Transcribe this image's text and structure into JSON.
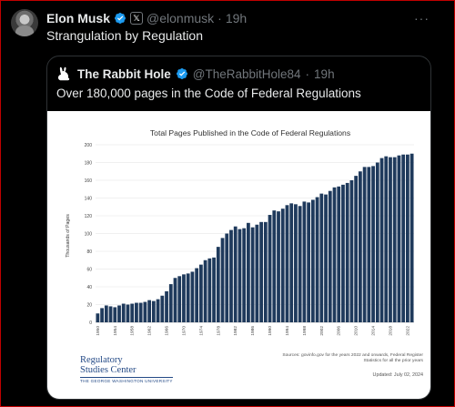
{
  "post": {
    "author_name": "Elon Musk",
    "author_handle": "@elonmusk",
    "time": "19h",
    "separator": "·",
    "text": "Strangulation by Regulation",
    "more_glyph": "···"
  },
  "quote": {
    "author_name": "The Rabbit Hole",
    "author_handle": "@TheRabbitHole84",
    "time": "19h",
    "separator": "·",
    "text": "Over 180,000 pages in the Code of Federal Regulations"
  },
  "card": {
    "logo_line1": "Regulatory",
    "logo_line2": "Studies Center",
    "logo_line3": "THE GEORGE WASHINGTON UNIVERSITY",
    "sources_line1": "Sources: govinfo.gov for the years 2022 and onwards, Federal Register",
    "sources_line2": "Statistics for all the prior years",
    "updated": "Updated: July 02, 2024"
  },
  "colors": {
    "bar": "#1f3a5c",
    "verified": "#1d9bf0",
    "background": "#000000",
    "card": "#ffffff"
  },
  "chart_data": {
    "type": "bar",
    "title": "Total Pages Published in the Code of Federal Regulations",
    "xlabel": "",
    "ylabel": "Thousands of Pages",
    "ylim": [
      0,
      200
    ],
    "yticks": [
      0,
      20,
      40,
      60,
      80,
      100,
      120,
      140,
      160,
      180,
      200
    ],
    "xtick_labels": [
      "1950",
      "1954",
      "1958",
      "1962",
      "1966",
      "1970",
      "1974",
      "1978",
      "1982",
      "1986",
      "1990",
      "1994",
      "1998",
      "2002",
      "2006",
      "2010",
      "2014",
      "2018",
      "2022"
    ],
    "grid": true,
    "legend": "none",
    "categories": [
      1950,
      1951,
      1952,
      1953,
      1954,
      1955,
      1956,
      1957,
      1958,
      1959,
      1960,
      1961,
      1962,
      1963,
      1964,
      1965,
      1966,
      1967,
      1968,
      1969,
      1970,
      1971,
      1972,
      1973,
      1974,
      1975,
      1976,
      1977,
      1978,
      1979,
      1980,
      1981,
      1982,
      1983,
      1984,
      1985,
      1986,
      1987,
      1988,
      1989,
      1990,
      1991,
      1992,
      1993,
      1994,
      1995,
      1996,
      1997,
      1998,
      1999,
      2000,
      2001,
      2002,
      2003,
      2004,
      2005,
      2006,
      2007,
      2008,
      2009,
      2010,
      2011,
      2012,
      2013,
      2014,
      2015,
      2016,
      2017,
      2018,
      2019,
      2020,
      2021,
      2022,
      2023
    ],
    "values": [
      10,
      16,
      19,
      18,
      17,
      19,
      21,
      20,
      21,
      22,
      22,
      23,
      25,
      24,
      26,
      30,
      35,
      43,
      50,
      52,
      54,
      55,
      57,
      61,
      65,
      70,
      72,
      73,
      85,
      95,
      100,
      104,
      108,
      105,
      106,
      112,
      107,
      110,
      113,
      113,
      121,
      126,
      125,
      128,
      132,
      134,
      133,
      131,
      136,
      135,
      138,
      141,
      145,
      144,
      148,
      152,
      153,
      155,
      157,
      160,
      165,
      170,
      175,
      175,
      176,
      180,
      185,
      187,
      186,
      186,
      188,
      189,
      189,
      190
    ]
  }
}
